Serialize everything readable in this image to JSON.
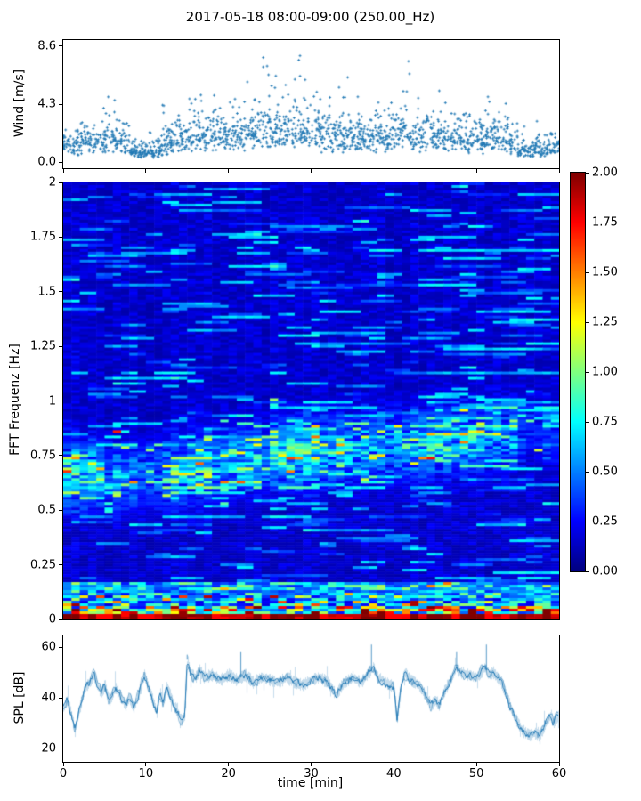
{
  "figure": {
    "title": "2017-05-18 08:00-09:00 (250.00_Hz)",
    "background": "#ffffff",
    "accent_blue": "#1f77b4"
  },
  "chart_data": [
    {
      "id": "wind",
      "type": "scatter",
      "marker": "plus",
      "color": "#1f77b4",
      "ylabel": "Wind [m/s]",
      "xlim": [
        0,
        60
      ],
      "ylim": [
        -0.45,
        9.05
      ],
      "yticks": {
        "labels": [
          "8.6",
          "4.3",
          "0.0"
        ],
        "values": [
          8.6,
          4.3,
          0.0
        ]
      },
      "xticks_unlabeled": [
        0,
        10,
        20,
        30,
        40,
        50,
        60
      ],
      "points_per_min": 30,
      "mean_per_min": [
        1.9,
        1.6,
        2.1,
        2.4,
        2.0,
        2.3,
        2.5,
        2.1,
        1.3,
        1.0,
        1.0,
        1.3,
        1.9,
        2.2,
        2.4,
        2.5,
        2.7,
        2.6,
        2.9,
        2.7,
        2.8,
        2.9,
        3.1,
        3.0,
        3.2,
        3.3,
        3.0,
        3.1,
        3.3,
        3.0,
        3.1,
        2.8,
        2.6,
        2.8,
        3.0,
        2.6,
        2.4,
        2.6,
        2.8,
        2.5,
        2.7,
        2.9,
        2.6,
        2.3,
        2.5,
        2.7,
        2.5,
        2.7,
        2.5,
        2.3,
        2.2,
        2.4,
        2.6,
        2.4,
        1.8,
        1.3,
        1.2,
        1.3,
        1.5,
        1.6
      ],
      "max_per_min": [
        3.9,
        3.3,
        4.2,
        4.7,
        4.1,
        4.9,
        4.6,
        4.3,
        2.9,
        2.4,
        2.3,
        2.8,
        4.4,
        4.3,
        5.3,
        4.8,
        5.5,
        5.0,
        5.6,
        5.2,
        6.4,
        6.6,
        7.5,
        7.7,
        8.0,
        8.6,
        6.3,
        7.6,
        8.5,
        7.0,
        7.4,
        6.1,
        5.0,
        6.2,
        8.4,
        5.3,
        4.8,
        5.3,
        5.6,
        4.9,
        5.6,
        8.1,
        5.2,
        4.6,
        5.4,
        5.6,
        5.2,
        5.5,
        5.3,
        4.6,
        4.4,
        5.0,
        5.9,
        5.3,
        3.8,
        2.8,
        2.6,
        3.1,
        4.4,
        4.5
      ]
    },
    {
      "id": "spectrogram",
      "type": "heatmap",
      "ylabel": "FFT Frequenz [Hz]",
      "colormap": "jet",
      "xlim": [
        0,
        60
      ],
      "ylim": [
        0,
        2
      ],
      "zlim": [
        0,
        2
      ],
      "time_bins": 60,
      "freq_bins": 164,
      "yticks": {
        "labels": [
          "2",
          "1.75",
          "1.5",
          "1.25",
          "1",
          "0.75",
          "0.5",
          "0.25",
          "0"
        ],
        "values": [
          2,
          1.75,
          1.5,
          1.25,
          1,
          0.75,
          0.5,
          0.25,
          0
        ]
      },
      "background": {
        "base": 0.09,
        "noise": 0.16,
        "streak_chance": 0.05
      },
      "wave_band": {
        "centers_hz_per_5min": [
          0.66,
          0.65,
          0.67,
          0.7,
          0.73,
          0.76,
          0.78,
          0.79,
          0.8,
          0.82,
          0.84,
          0.86
        ],
        "amps_per_5min": [
          0.6,
          0.4,
          0.45,
          0.55,
          0.55,
          0.7,
          0.6,
          0.5,
          0.55,
          0.55,
          0.5,
          0.2
        ],
        "sigma_hz": 0.1
      },
      "low_freq_band": {
        "dark_red_below_hz": 0.03,
        "hot_mix_below_hz": 0.06,
        "warm_mix_below_hz": 0.11,
        "enhanced_below_hz": 0.17
      },
      "colorbar": {
        "ticks": {
          "labels": [
            "2.00",
            "1.75",
            "1.50",
            "1.25",
            "1.00",
            "0.75",
            "0.50",
            "0.25",
            "0.00"
          ],
          "values": [
            2,
            1.75,
            1.5,
            1.25,
            1,
            0.75,
            0.5,
            0.25,
            0
          ]
        }
      }
    },
    {
      "id": "spl",
      "type": "line",
      "color": "#1f77b4",
      "ylabel": "SPL [dB]",
      "xlabel": "time [min]",
      "xlim": [
        0,
        60
      ],
      "ylim": [
        14.7,
        64.6
      ],
      "yticks": {
        "labels": [
          "60",
          "40",
          "20"
        ],
        "values": [
          60,
          40,
          20
        ]
      },
      "xticks": {
        "labels": [
          "0",
          "10",
          "20",
          "30",
          "40",
          "50",
          "60"
        ],
        "values": [
          0,
          10,
          20,
          30,
          40,
          50,
          60
        ]
      },
      "noise_db": 1.7,
      "anchors": [
        [
          0,
          36
        ],
        [
          0.5,
          39
        ],
        [
          1,
          33
        ],
        [
          1.4,
          27
        ],
        [
          2,
          36
        ],
        [
          2.6,
          44
        ],
        [
          3.2,
          46
        ],
        [
          3.7,
          49
        ],
        [
          4.2,
          44
        ],
        [
          4.7,
          42
        ],
        [
          5,
          45
        ],
        [
          5.6,
          39
        ],
        [
          6.3,
          44
        ],
        [
          7,
          40
        ],
        [
          7.5,
          37
        ],
        [
          8,
          40
        ],
        [
          8.5,
          36
        ],
        [
          9.2,
          42
        ],
        [
          9.8,
          49
        ],
        [
          10.3,
          44
        ],
        [
          10.8,
          39
        ],
        [
          11.3,
          34
        ],
        [
          11.7,
          42
        ],
        [
          12.1,
          38
        ],
        [
          12.5,
          44
        ],
        [
          12.9,
          41
        ],
        [
          13.4,
          37
        ],
        [
          13.9,
          34
        ],
        [
          14.3,
          31
        ],
        [
          14.7,
          33
        ],
        [
          15,
          55
        ],
        [
          15.4,
          49
        ],
        [
          16,
          48
        ],
        [
          16.5,
          51
        ],
        [
          17,
          48
        ],
        [
          18,
          49
        ],
        [
          19,
          47
        ],
        [
          20,
          49
        ],
        [
          21,
          47
        ],
        [
          22,
          49
        ],
        [
          23,
          46
        ],
        [
          24,
          48
        ],
        [
          25,
          47
        ],
        [
          26,
          46
        ],
        [
          27,
          48
        ],
        [
          28,
          46
        ],
        [
          29,
          45
        ],
        [
          30,
          47
        ],
        [
          31,
          48
        ],
        [
          32,
          46
        ],
        [
          33,
          41
        ],
        [
          33.5,
          44
        ],
        [
          34,
          46
        ],
        [
          35,
          48
        ],
        [
          36,
          46
        ],
        [
          37,
          50
        ],
        [
          37.5,
          52
        ],
        [
          38,
          48
        ],
        [
          39,
          46
        ],
        [
          40,
          44
        ],
        [
          40.4,
          32
        ],
        [
          40.9,
          46
        ],
        [
          41.3,
          50
        ],
        [
          42,
          47
        ],
        [
          43,
          45
        ],
        [
          44,
          40
        ],
        [
          44.5,
          37
        ],
        [
          45,
          39
        ],
        [
          45.5,
          37
        ],
        [
          46,
          42
        ],
        [
          47,
          48
        ],
        [
          47.5,
          52
        ],
        [
          48,
          50
        ],
        [
          49,
          49
        ],
        [
          50,
          48
        ],
        [
          50.5,
          50
        ],
        [
          51,
          52
        ],
        [
          51.5,
          49
        ],
        [
          52,
          50
        ],
        [
          52.5,
          48
        ],
        [
          53,
          46
        ],
        [
          53.5,
          42
        ],
        [
          54,
          37
        ],
        [
          54.5,
          33
        ],
        [
          55,
          30
        ],
        [
          55.5,
          27
        ],
        [
          56,
          26
        ],
        [
          56.5,
          25
        ],
        [
          57,
          26
        ],
        [
          57.5,
          25
        ],
        [
          58,
          27
        ],
        [
          58.5,
          31
        ],
        [
          59,
          33
        ],
        [
          59.3,
          30
        ],
        [
          59.6,
          32
        ],
        [
          60,
          33
        ]
      ],
      "spikes": [
        [
          15.0,
          57
        ],
        [
          21.5,
          58
        ],
        [
          37.3,
          61
        ],
        [
          47.6,
          58
        ],
        [
          51.2,
          61
        ]
      ]
    }
  ]
}
